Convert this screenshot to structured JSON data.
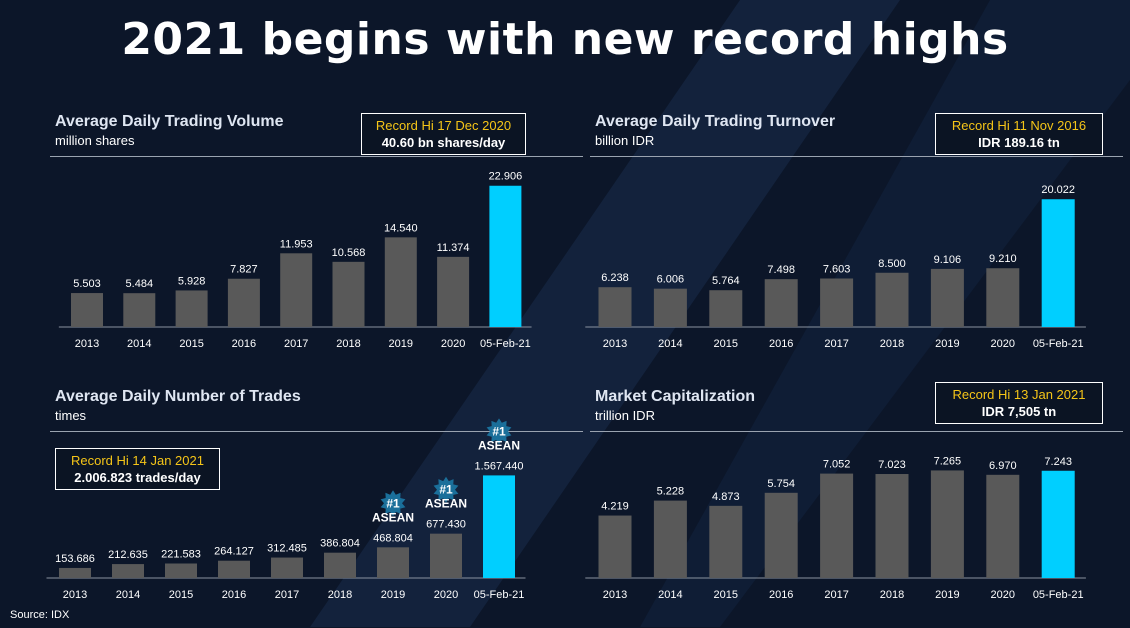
{
  "title": "2021 begins with new record highs",
  "source": "Source: IDX",
  "colors": {
    "bar": "#595959",
    "highlight": "#00cfff",
    "record_label": "#f5c518",
    "background": "#0c1629"
  },
  "panels": [
    {
      "title": "Average Daily Trading Volume",
      "subtitle": "million shares",
      "record": {
        "label": "Record Hi 17 Dec 2020",
        "value": "40.60 bn shares/day"
      }
    },
    {
      "title": "Average Daily Trading Turnover",
      "subtitle": "billion IDR",
      "record": {
        "label": "Record Hi 11 Nov 2016",
        "value": "IDR 189.16 tn"
      }
    },
    {
      "title": "Average Daily Number of Trades",
      "subtitle": "times",
      "record": {
        "label": "Record Hi 14 Jan 2021",
        "value": "2.006.823 trades/day"
      },
      "badges": [
        {
          "category": "2019",
          "line1": "#1",
          "line2": "ASEAN"
        },
        {
          "category": "2020",
          "line1": "#1",
          "line2": "ASEAN"
        },
        {
          "category": "05-Feb-21",
          "line1": "#1",
          "line2": "ASEAN"
        }
      ]
    },
    {
      "title": "Market Capitalization",
      "subtitle": "trillion IDR",
      "record": {
        "label": "Record Hi 13 Jan 2021",
        "value": "IDR 7,505 tn"
      }
    }
  ],
  "chart_data": [
    {
      "type": "bar",
      "title": "Average Daily Trading Volume",
      "ylabel": "million shares",
      "categories": [
        "2013",
        "2014",
        "2015",
        "2016",
        "2017",
        "2018",
        "2019",
        "2020",
        "05-Feb-21"
      ],
      "values": [
        5.503,
        5.484,
        5.928,
        7.827,
        11.953,
        10.568,
        14.54,
        11.374,
        22.906
      ],
      "labels": [
        "5.503",
        "5.484",
        "5.928",
        "7.827",
        "11.953",
        "10.568",
        "14.540",
        "11.374",
        "22.906"
      ],
      "highlight_index": 8,
      "ylim": [
        0,
        24
      ]
    },
    {
      "type": "bar",
      "title": "Average Daily Trading Turnover",
      "ylabel": "billion IDR",
      "categories": [
        "2013",
        "2014",
        "2015",
        "2016",
        "2017",
        "2018",
        "2019",
        "2020",
        "05-Feb-21"
      ],
      "values": [
        6.238,
        6.006,
        5.764,
        7.498,
        7.603,
        8.5,
        9.106,
        9.21,
        20.022
      ],
      "labels": [
        "6.238",
        "6.006",
        "5.764",
        "7.498",
        "7.603",
        "8.500",
        "9.106",
        "9.210",
        "20.022"
      ],
      "highlight_index": 8,
      "ylim": [
        0,
        21
      ]
    },
    {
      "type": "bar",
      "title": "Average Daily Number of Trades",
      "ylabel": "times",
      "categories": [
        "2013",
        "2014",
        "2015",
        "2016",
        "2017",
        "2018",
        "2019",
        "2020",
        "05-Feb-21"
      ],
      "values": [
        153686,
        212635,
        221583,
        264127,
        312485,
        386804,
        468804,
        677430,
        1567440
      ],
      "labels": [
        "153.686",
        "212.635",
        "221.583",
        "264.127",
        "312.485",
        "386.804",
        "468.804",
        "677.430",
        "1.567.440"
      ],
      "highlight_index": 8,
      "ylim": [
        0,
        1650000
      ]
    },
    {
      "type": "bar",
      "title": "Market Capitalization",
      "ylabel": "trillion IDR",
      "categories": [
        "2013",
        "2014",
        "2015",
        "2016",
        "2017",
        "2018",
        "2019",
        "2020",
        "05-Feb-21"
      ],
      "values": [
        4.219,
        5.228,
        4.873,
        5.754,
        7.052,
        7.023,
        7.265,
        6.97,
        7.243
      ],
      "labels": [
        "4.219",
        "5.228",
        "4.873",
        "5.754",
        "7.052",
        "7.023",
        "7.265",
        "6.970",
        "7.243"
      ],
      "highlight_index": 8,
      "ylim": [
        0,
        7.7
      ]
    }
  ]
}
